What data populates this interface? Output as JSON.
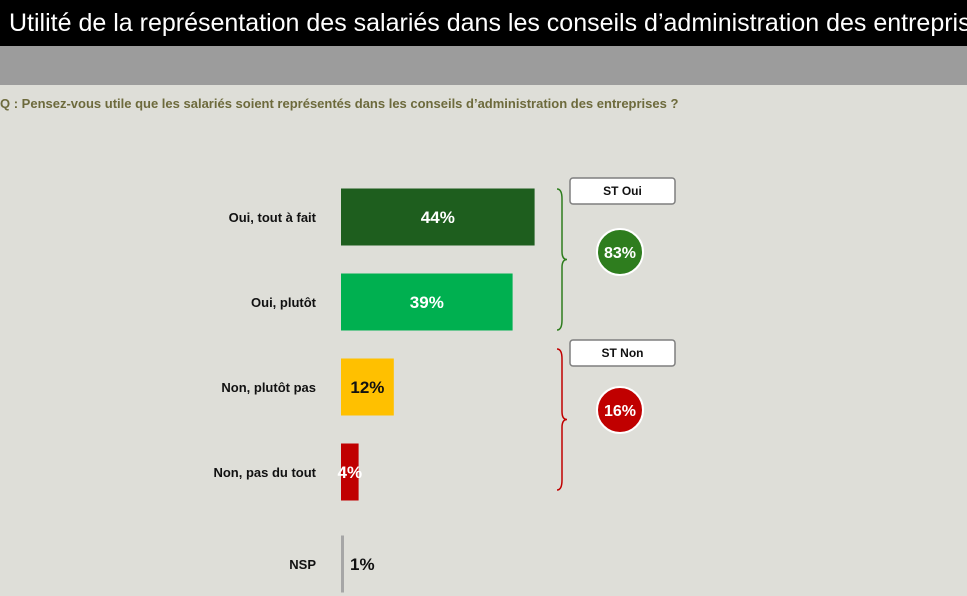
{
  "header": {
    "title": "Utilité de la représentation des salariés dans les conseils d’administration des entreprises",
    "question": "Q : Pensez-vous utile que les salariés soient représentés dans les conseils d’administration des entreprises ?"
  },
  "chart_data": {
    "type": "bar",
    "orientation": "horizontal",
    "categories": [
      "Oui, tout à fait",
      "Oui, plutôt",
      "Non, plutôt pas",
      "Non, pas du tout",
      "NSP"
    ],
    "values": [
      44,
      39,
      12,
      4,
      1
    ],
    "value_labels": [
      "44%",
      "39%",
      "12%",
      "4%",
      "1%"
    ],
    "colors": [
      "#1e5e1e",
      "#00b050",
      "#ffc000",
      "#c00000",
      "#a6a6a6"
    ],
    "value_label_colors": [
      "#ffffff",
      "#ffffff",
      "#111111",
      "#ffffff",
      "#111111"
    ],
    "xlim": [
      0,
      100
    ],
    "grid": false,
    "legend": "none",
    "groups": [
      {
        "label": "ST Oui",
        "value_label": "83%",
        "color": "#2e7d1e",
        "bracket_color": "#2e7d1e",
        "categories": [
          "Oui, tout à fait",
          "Oui, plutôt"
        ]
      },
      {
        "label": "ST Non",
        "value_label": "16%",
        "color": "#c00000",
        "bracket_color": "#c00000",
        "categories": [
          "Non, plutôt pas",
          "Non, pas du tout"
        ]
      }
    ]
  }
}
